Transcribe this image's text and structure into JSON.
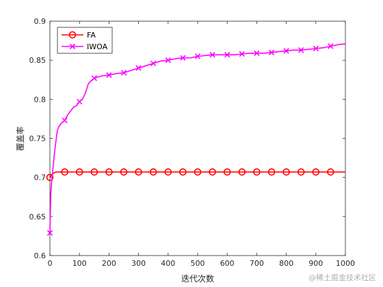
{
  "chart_data": {
    "type": "line",
    "title": "",
    "xlabel": "迭代次数",
    "ylabel": "覆盖率",
    "xlim": [
      0,
      1000
    ],
    "ylim": [
      0.6,
      0.9
    ],
    "xticks": [
      0,
      100,
      200,
      300,
      400,
      500,
      600,
      700,
      800,
      900,
      1000
    ],
    "yticks": [
      0.6,
      0.65,
      0.7,
      0.75,
      0.8,
      0.85,
      0.9
    ],
    "grid": false,
    "legend_position": "top-left",
    "series": [
      {
        "name": "FA",
        "color": "#ff0000",
        "marker": "circle",
        "x": [
          0,
          5,
          10,
          20,
          50,
          100,
          150,
          200,
          250,
          300,
          350,
          400,
          450,
          500,
          550,
          600,
          650,
          700,
          750,
          800,
          850,
          900,
          950,
          1000
        ],
        "y": [
          0.7,
          0.703,
          0.705,
          0.707,
          0.707,
          0.707,
          0.707,
          0.707,
          0.707,
          0.707,
          0.707,
          0.707,
          0.707,
          0.707,
          0.707,
          0.707,
          0.707,
          0.707,
          0.707,
          0.707,
          0.707,
          0.707,
          0.707,
          0.707
        ],
        "marker_x": [
          0,
          50,
          100,
          150,
          200,
          250,
          300,
          350,
          400,
          450,
          500,
          550,
          600,
          650,
          700,
          750,
          800,
          850,
          900,
          950
        ]
      },
      {
        "name": "IWOA",
        "color": "#ff00ff",
        "marker": "x",
        "x": [
          0,
          3,
          6,
          10,
          15,
          20,
          25,
          30,
          40,
          50,
          60,
          70,
          80,
          90,
          100,
          110,
          120,
          130,
          140,
          150,
          175,
          200,
          225,
          250,
          275,
          300,
          325,
          350,
          375,
          400,
          425,
          450,
          475,
          500,
          525,
          550,
          575,
          600,
          625,
          650,
          675,
          700,
          725,
          750,
          775,
          800,
          825,
          850,
          875,
          900,
          925,
          950,
          975,
          1000
        ],
        "y": [
          0.629,
          0.68,
          0.695,
          0.71,
          0.73,
          0.745,
          0.76,
          0.765,
          0.77,
          0.773,
          0.78,
          0.785,
          0.79,
          0.792,
          0.797,
          0.8,
          0.808,
          0.82,
          0.824,
          0.827,
          0.83,
          0.831,
          0.833,
          0.834,
          0.837,
          0.84,
          0.843,
          0.846,
          0.849,
          0.85,
          0.852,
          0.853,
          0.853,
          0.855,
          0.856,
          0.857,
          0.857,
          0.857,
          0.857,
          0.858,
          0.859,
          0.859,
          0.859,
          0.86,
          0.861,
          0.862,
          0.863,
          0.863,
          0.864,
          0.865,
          0.866,
          0.868,
          0.87,
          0.871
        ],
        "marker_x": [
          0,
          50,
          100,
          150,
          200,
          250,
          300,
          350,
          400,
          450,
          500,
          550,
          600,
          650,
          700,
          750,
          800,
          850,
          900,
          950
        ]
      }
    ]
  },
  "watermark": "@稀土掘金技术社区"
}
